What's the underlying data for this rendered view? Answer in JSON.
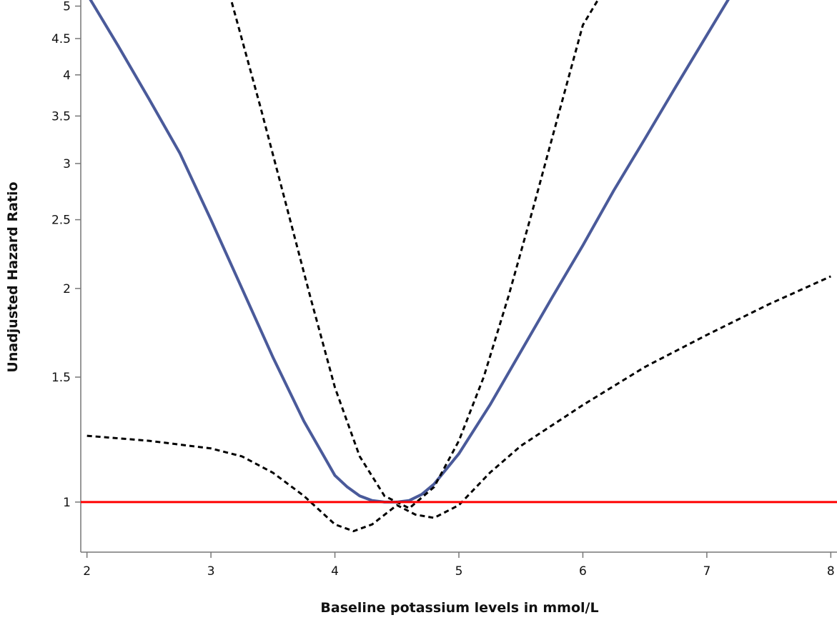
{
  "chart_data": {
    "type": "line",
    "title": "",
    "xlabel": "Baseline potassium levels in mmol/L",
    "ylabel": "Unadjusted Hazard Ratio",
    "xlim": [
      1.95,
      8.05
    ],
    "ylim": [
      0.85,
      5.1
    ],
    "y_scale": "log",
    "x_ticks": [
      2,
      3,
      4,
      5,
      6,
      7,
      8
    ],
    "x_tick_labels": [
      "2",
      "3",
      "4",
      "5",
      "6",
      "7",
      "8"
    ],
    "y_ticks": [
      1,
      1.5,
      2,
      2.5,
      3,
      3.5,
      4,
      4.5,
      5
    ],
    "y_tick_labels": [
      "1",
      "1.5",
      "2",
      "2.5",
      "3",
      "3.5",
      "4",
      "4.5",
      "5"
    ],
    "grid": false,
    "legend": "none",
    "reference_line": {
      "y": 1,
      "color": "#ff0000"
    },
    "series": [
      {
        "style": "solid",
        "color": "#4a5a9a",
        "x": [
          2.0,
          2.25,
          2.5,
          2.75,
          3.0,
          3.25,
          3.5,
          3.75,
          4.0,
          4.1,
          4.2,
          4.3,
          4.4,
          4.5,
          4.6,
          4.7,
          4.8,
          5.0,
          5.25,
          5.5,
          5.75,
          6.0,
          6.25,
          6.5,
          6.75,
          7.0,
          7.2
        ],
        "y": [
          5.2,
          4.4,
          3.7,
          3.1,
          2.5,
          2.0,
          1.6,
          1.3,
          1.09,
          1.05,
          1.02,
          1.005,
          1.0,
          1.0,
          1.005,
          1.025,
          1.06,
          1.17,
          1.37,
          1.63,
          1.94,
          2.3,
          2.75,
          3.25,
          3.85,
          4.55,
          5.2
        ]
      },
      {
        "style": "dashed",
        "color": "#000000",
        "x": [
          3.15,
          3.4,
          3.6,
          3.8,
          4.0,
          4.2,
          4.4,
          4.6,
          4.8,
          5.0,
          5.2,
          5.4,
          5.6,
          5.8,
          6.0,
          6.15
        ],
        "y": [
          5.2,
          3.6,
          2.65,
          1.95,
          1.45,
          1.16,
          1.02,
          0.98,
          1.05,
          1.22,
          1.5,
          1.95,
          2.6,
          3.5,
          4.7,
          5.2
        ]
      },
      {
        "style": "dashed",
        "color": "#000000",
        "x": [
          2.0,
          2.5,
          3.0,
          3.25,
          3.5,
          3.75,
          4.0,
          4.15,
          4.3,
          4.5,
          4.65,
          4.8,
          5.0,
          5.25,
          5.5,
          6.0,
          6.5,
          7.0,
          7.5,
          8.0
        ],
        "y": [
          1.24,
          1.22,
          1.19,
          1.16,
          1.1,
          1.02,
          0.93,
          0.91,
          0.93,
          0.99,
          0.96,
          0.95,
          0.99,
          1.1,
          1.2,
          1.37,
          1.55,
          1.72,
          1.9,
          2.08
        ]
      }
    ]
  }
}
